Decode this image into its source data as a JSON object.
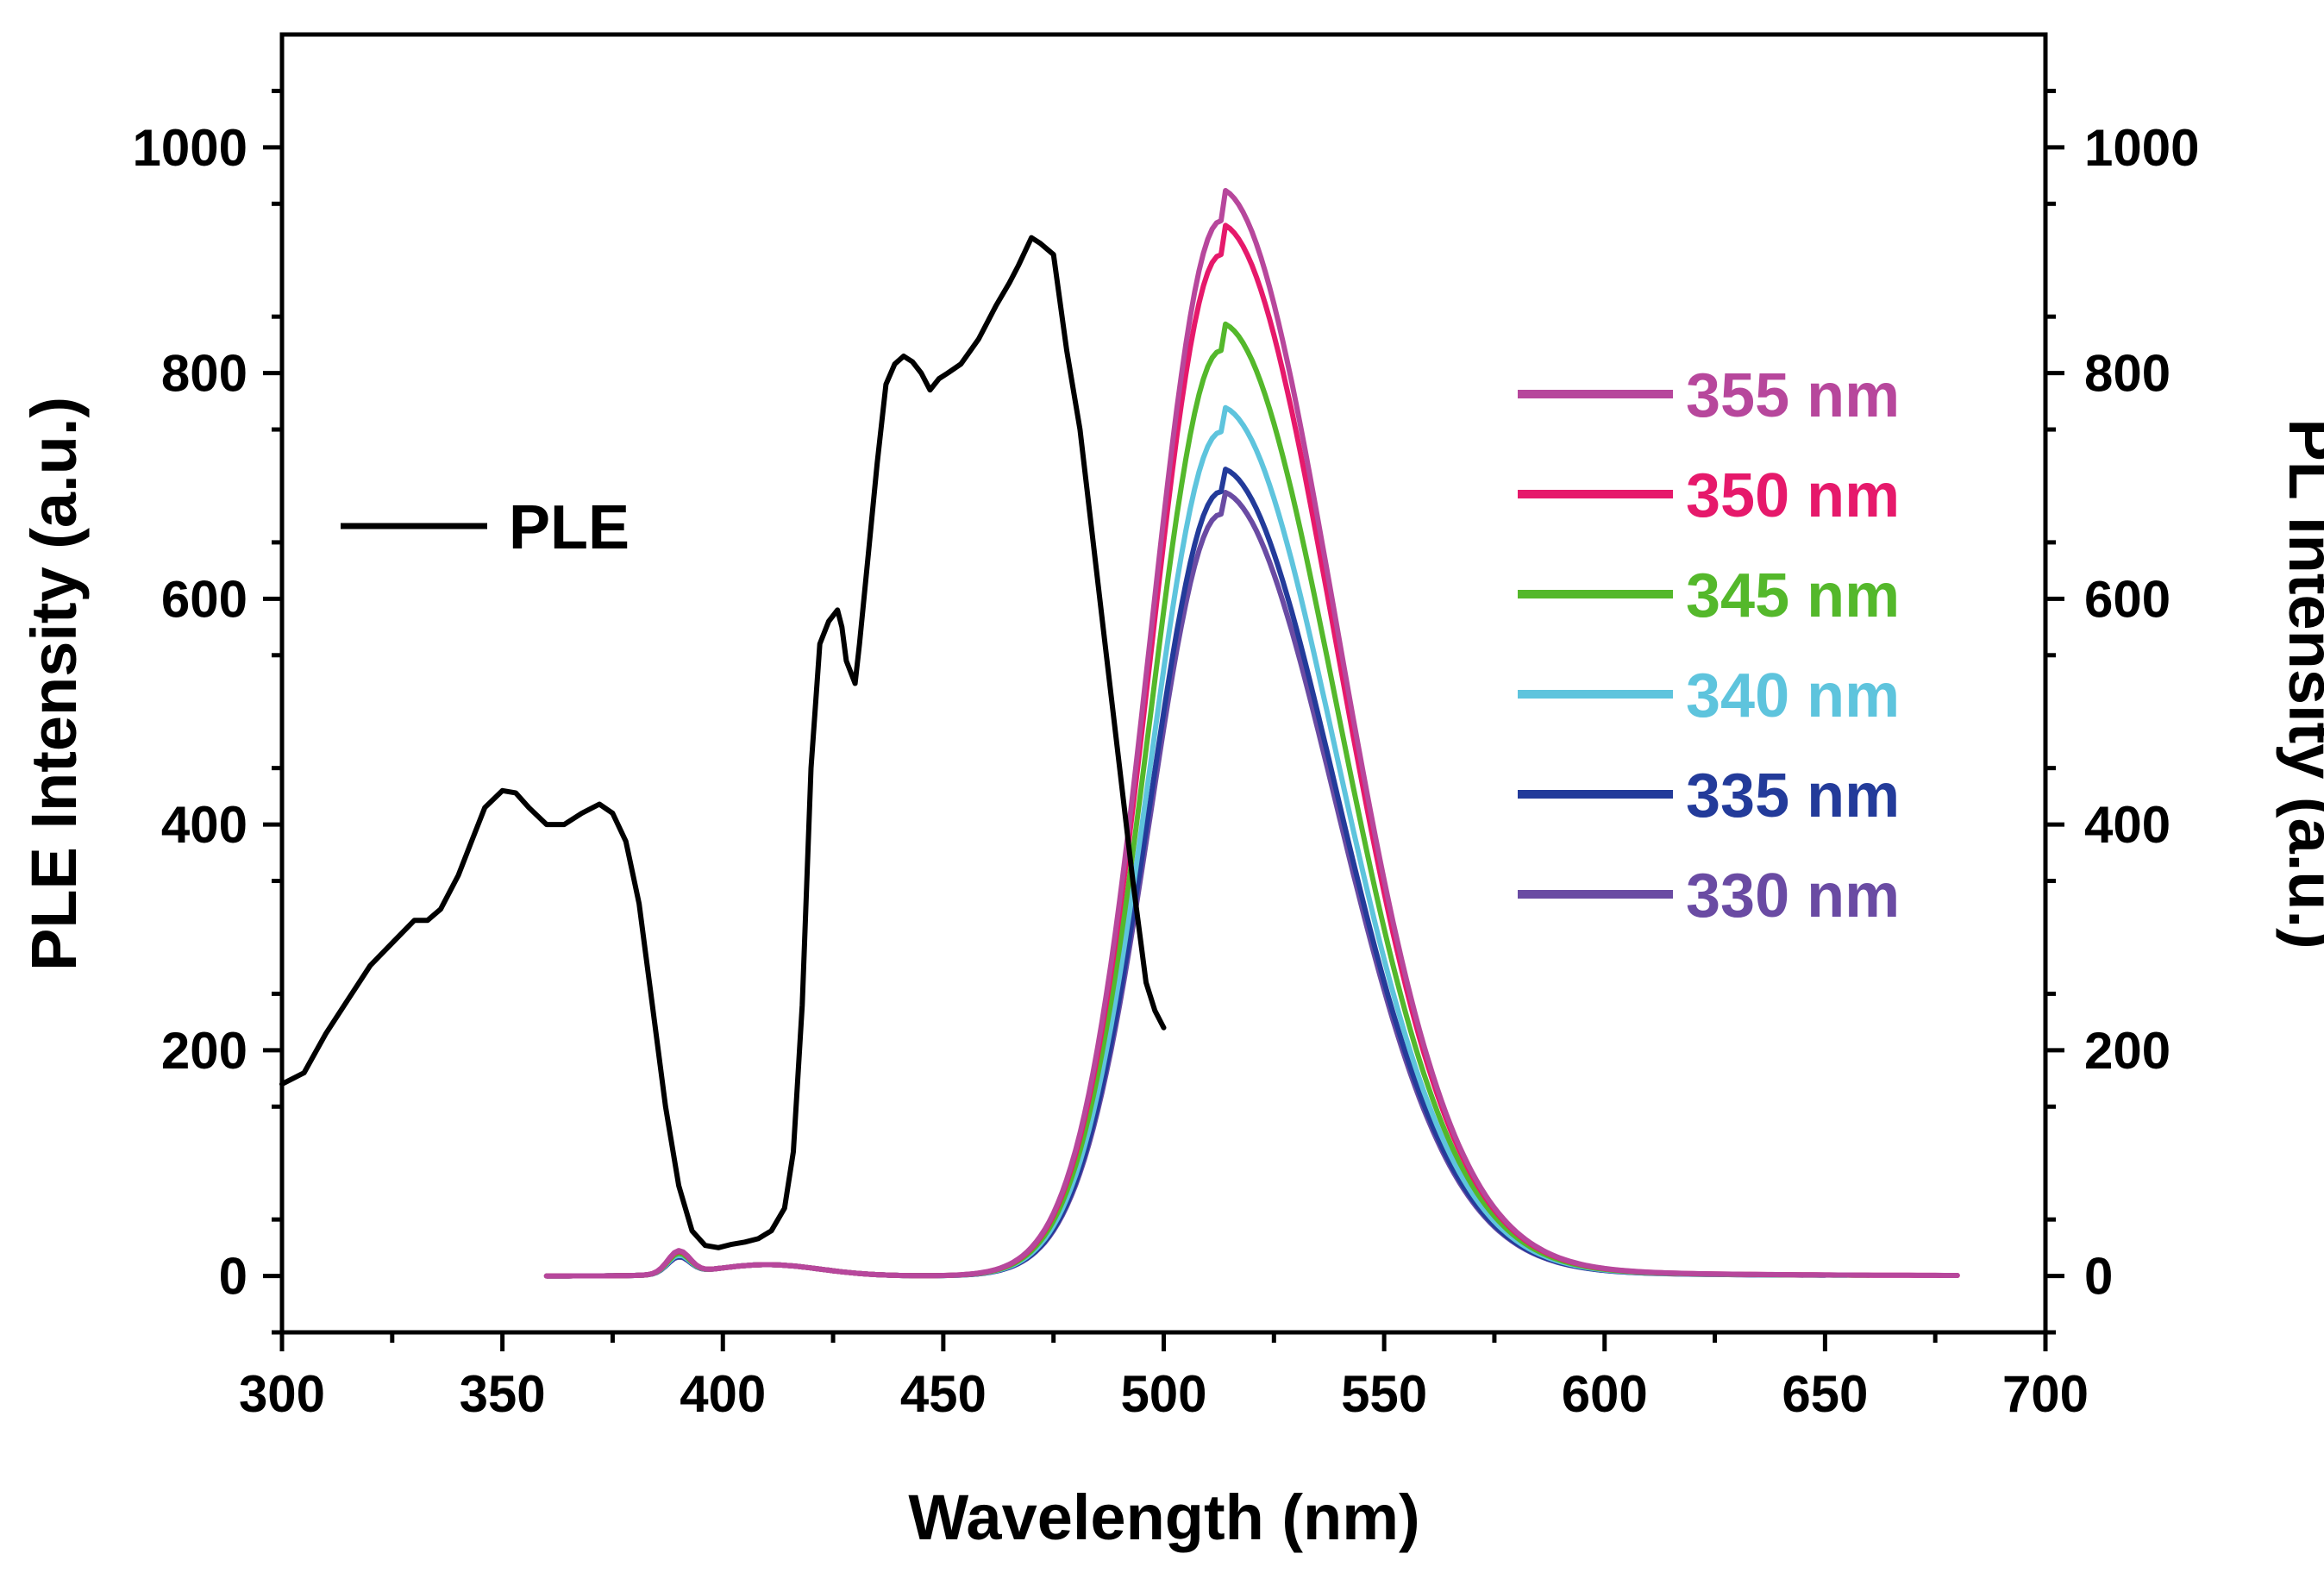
{
  "chart_data": {
    "type": "line",
    "title": "",
    "xlabel": "Wavelength (nm)",
    "ylabel": "PLE Intensity (a.u.)",
    "y2label": "PL Intensity (a.u.)",
    "xlim": [
      300,
      700
    ],
    "ylim": [
      -50,
      1100
    ],
    "y2lim": [
      -50,
      1100
    ],
    "xticks": [
      300,
      350,
      400,
      450,
      500,
      550,
      600,
      650,
      700
    ],
    "yticks": [
      0,
      200,
      400,
      600,
      800,
      1000
    ],
    "y2ticks": [
      0,
      200,
      400,
      600,
      800,
      1000
    ],
    "grid": false,
    "ple_legend": {
      "label": "PLE",
      "color": "#000000",
      "placement": "left-middle"
    },
    "legend_placement": "right-upper",
    "ple_series": {
      "name": "PLE",
      "color": "#000000",
      "x": [
        300,
        305,
        310,
        315,
        320,
        325,
        330,
        333,
        336,
        340,
        343,
        346,
        350,
        353,
        356,
        360,
        364,
        368,
        372,
        375,
        378,
        381,
        384,
        387,
        390,
        393,
        396,
        399,
        402,
        405,
        408,
        411,
        414,
        416,
        418,
        420,
        422,
        424,
        426,
        427,
        428,
        430,
        431,
        433,
        435,
        437,
        439,
        441,
        443,
        445,
        447,
        449,
        451,
        454,
        458,
        462,
        465,
        467,
        470,
        472,
        475,
        478,
        481,
        484,
        487,
        490,
        493,
        496,
        498,
        500
      ],
      "y": [
        170,
        180,
        215,
        245,
        275,
        295,
        315,
        315,
        325,
        355,
        385,
        415,
        430,
        428,
        415,
        400,
        400,
        410,
        418,
        410,
        385,
        330,
        240,
        150,
        80,
        40,
        27,
        25,
        28,
        30,
        33,
        40,
        60,
        110,
        240,
        450,
        560,
        580,
        590,
        575,
        545,
        525,
        560,
        640,
        720,
        790,
        808,
        815,
        810,
        800,
        785,
        795,
        800,
        808,
        830,
        860,
        880,
        895,
        920,
        915,
        905,
        820,
        750,
        650,
        550,
        450,
        350,
        260,
        235,
        220
      ]
    },
    "series": [
      {
        "name": "355 nm",
        "color": "#b7479c",
        "peak": 935,
        "end": 680
      },
      {
        "name": "350 nm",
        "color": "#e6196b",
        "peak": 905,
        "end": 680
      },
      {
        "name": "345 nm",
        "color": "#54b82b",
        "peak": 820,
        "end": 660
      },
      {
        "name": "340 nm",
        "color": "#5ec4dd",
        "peak": 748,
        "end": 655
      },
      {
        "name": "335 nm",
        "color": "#233b9a",
        "peak": 695,
        "end": 650
      },
      {
        "name": "330 nm",
        "color": "#6a4ba3",
        "peak": 675,
        "end": 645
      }
    ],
    "pl_peak_wavelength": 513,
    "pl_start_wavelength": 360,
    "pl_side_feature": {
      "x": 390,
      "values": [
        15,
        18,
        22,
        28,
        24,
        20
      ]
    }
  }
}
